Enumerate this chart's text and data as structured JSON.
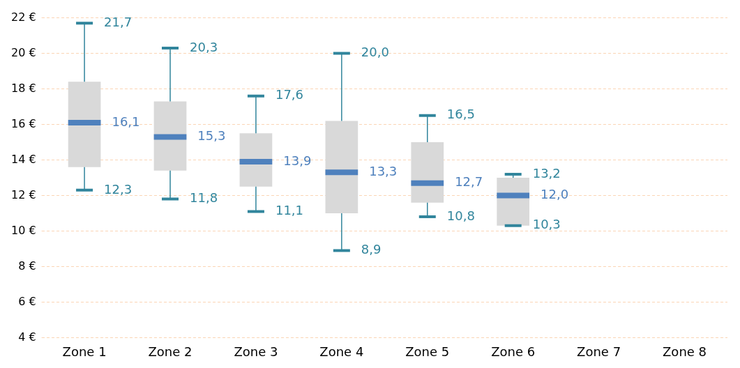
{
  "chart_data": {
    "type": "box",
    "categories": [
      "Zone 1",
      "Zone 2",
      "Zone 3",
      "Zone 4",
      "Zone 5",
      "Zone 6",
      "Zone 7",
      "Zone 8"
    ],
    "boxes": [
      {
        "low": 12.3,
        "q1": 13.6,
        "median": 16.1,
        "q3": 18.4,
        "high": 21.7
      },
      {
        "low": 11.8,
        "q1": 13.4,
        "median": 15.3,
        "q3": 17.3,
        "high": 20.3
      },
      {
        "low": 11.1,
        "q1": 12.5,
        "median": 13.9,
        "q3": 15.5,
        "high": 17.6
      },
      {
        "low": 8.9,
        "q1": 11.0,
        "median": 13.3,
        "q3": 16.2,
        "high": 20.0
      },
      {
        "low": 10.8,
        "q1": 11.6,
        "median": 12.7,
        "q3": 15.0,
        "high": 16.5
      },
      {
        "low": 10.3,
        "q1": 10.3,
        "median": 12.0,
        "q3": 13.0,
        "high": 13.2
      },
      null,
      null
    ],
    "color": "#d9d9d9",
    "annotations": [
      {
        "text": "21,7",
        "x": "Zone 1",
        "y": 21.7
      },
      {
        "text": "16,1",
        "x": "Zone 1",
        "y": 16.1
      },
      {
        "text": "12,3",
        "x": "Zone 1",
        "y": 12.3
      },
      {
        "text": "20,3",
        "x": "Zone 2",
        "y": 20.3
      },
      {
        "text": "15,3",
        "x": "Zone 2",
        "y": 15.3
      },
      {
        "text": "11,8",
        "x": "Zone 2",
        "y": 11.8
      },
      {
        "text": "17,6",
        "x": "Zone 3",
        "y": 17.6
      },
      {
        "text": "13,9",
        "x": "Zone 3",
        "y": 13.9
      },
      {
        "text": "11,1",
        "x": "Zone 3",
        "y": 11.1
      },
      {
        "text": "20,0",
        "x": "Zone 4",
        "y": 20.0
      },
      {
        "text": "13,3",
        "x": "Zone 4",
        "y": 13.3
      },
      {
        "text": "8,9",
        "x": "Zone 4",
        "y": 8.9
      },
      {
        "text": "16,5",
        "x": "Zone 5",
        "y": 16.5
      },
      {
        "text": "12,7",
        "x": "Zone 5",
        "y": 12.7
      },
      {
        "text": "10,8",
        "x": "Zone 5",
        "y": 10.8
      },
      {
        "text": "13,2",
        "x": "Zone 6",
        "y": 13.2
      },
      {
        "text": "12,0",
        "x": "Zone 6",
        "y": 12.0
      },
      {
        "text": "10,3",
        "x": "Zone 6",
        "y": 10.3
      }
    ],
    "ylim": [
      4,
      22
    ],
    "yticks": [
      {
        "value": 4,
        "label": "4 €"
      },
      {
        "value": 6,
        "label": "6 €"
      },
      {
        "value": 8,
        "label": "8 €"
      },
      {
        "value": 10,
        "label": "10 €"
      },
      {
        "value": 12,
        "label": "12 €"
      },
      {
        "value": 14,
        "label": "14 €"
      },
      {
        "value": 16,
        "label": "16 €"
      },
      {
        "value": 18,
        "label": "18 €"
      },
      {
        "value": 20,
        "label": "20 €"
      },
      {
        "value": 22,
        "label": "22 €"
      }
    ],
    "grid": "y"
  }
}
